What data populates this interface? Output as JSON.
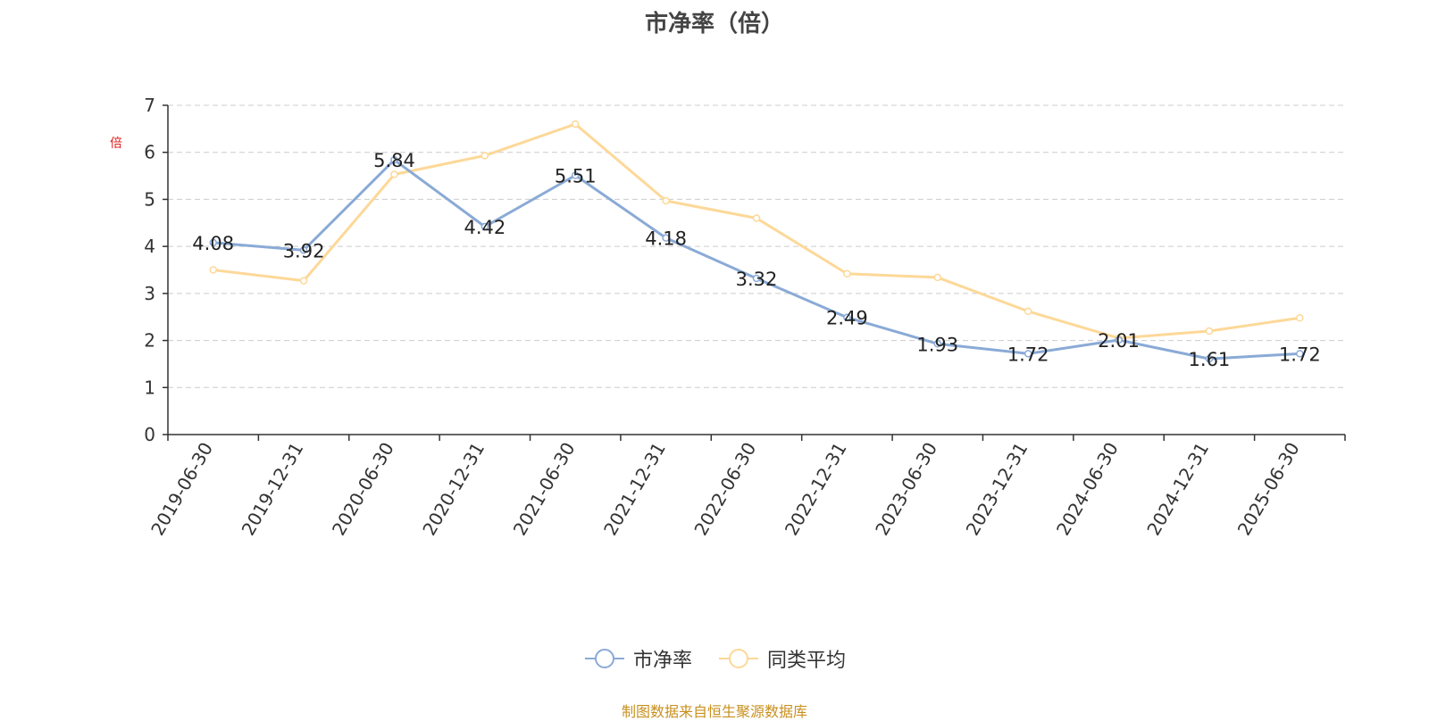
{
  "chart_data": {
    "type": "line",
    "title": "市净率（倍）",
    "ylabel": "倍",
    "xlabel": "",
    "categories": [
      "2019-06-30",
      "2019-12-31",
      "2020-06-30",
      "2020-12-31",
      "2021-06-30",
      "2021-12-31",
      "2022-06-30",
      "2022-12-31",
      "2023-06-30",
      "2023-12-31",
      "2024-06-30",
      "2024-12-31",
      "2025-06-30"
    ],
    "yticks": [
      "0",
      "1",
      "2",
      "3",
      "4",
      "5",
      "6",
      "7"
    ],
    "ylim": [
      0,
      7
    ],
    "grid": true,
    "legend_position": "bottom",
    "series": [
      {
        "name": "市净率",
        "color": "#8aaad6",
        "values": [
          4.08,
          3.92,
          5.84,
          4.42,
          5.51,
          4.18,
          3.32,
          2.49,
          1.93,
          1.72,
          2.01,
          1.61,
          1.72
        ],
        "labels": [
          "4.08",
          "3.92",
          "5.84",
          "4.42",
          "5.51",
          "4.18",
          "3.32",
          "2.49",
          "1.93",
          "1.72",
          "2.01",
          "1.61",
          "1.72"
        ]
      },
      {
        "name": "同类平均",
        "color": "#fdd898",
        "values": [
          3.5,
          3.27,
          5.53,
          5.93,
          6.6,
          4.97,
          4.6,
          3.42,
          3.34,
          2.62,
          2.05,
          2.2,
          2.48
        ]
      }
    ]
  },
  "footer": {
    "source": "制图数据来自恒生聚源数据库"
  }
}
